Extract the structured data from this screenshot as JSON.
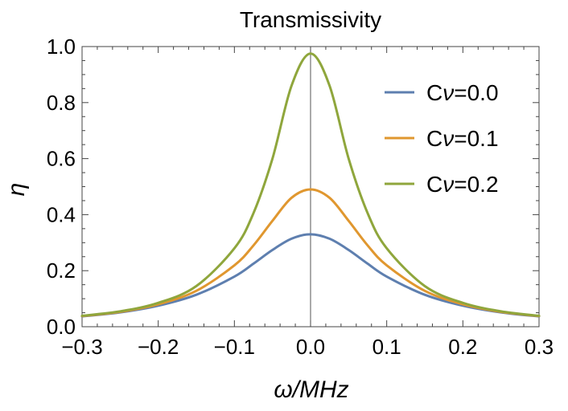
{
  "chart_data": {
    "type": "line",
    "title": "Transmissivity",
    "xlabel": "ω/MHz",
    "ylabel": "η",
    "xlim": [
      -0.3,
      0.3
    ],
    "ylim": [
      0.0,
      1.0
    ],
    "xticks": [
      -0.3,
      -0.2,
      -0.1,
      0.0,
      0.1,
      0.2,
      0.3
    ],
    "xtick_labels": [
      "−0.3",
      "−0.2",
      "−0.1",
      "0.0",
      "0.1",
      "0.2",
      "0.3"
    ],
    "yticks": [
      0.0,
      0.2,
      0.4,
      0.6,
      0.8,
      1.0
    ],
    "ytick_labels": [
      "0.0",
      "0.2",
      "0.4",
      "0.6",
      "0.8",
      "1.0"
    ],
    "grid": false,
    "legend_position": "top-right",
    "x": [
      -0.3,
      -0.25,
      -0.2,
      -0.15,
      -0.1,
      -0.075,
      -0.05,
      -0.025,
      0.0,
      0.025,
      0.05,
      0.075,
      0.1,
      0.15,
      0.2,
      0.25,
      0.3
    ],
    "series": [
      {
        "name": "Cν=0.0",
        "legend_prefix": "C",
        "legend_var": "ν",
        "legend_suffix": "=0.0",
        "color": "#5e7faf",
        "values": [
          0.037,
          0.051,
          0.075,
          0.114,
          0.179,
          0.225,
          0.274,
          0.314,
          0.33,
          0.314,
          0.274,
          0.225,
          0.179,
          0.114,
          0.075,
          0.051,
          0.037
        ]
      },
      {
        "name": "Cν=0.1",
        "legend_prefix": "C",
        "legend_var": "ν",
        "legend_suffix": "=0.1",
        "color": "#e0972f",
        "values": [
          0.038,
          0.053,
          0.08,
          0.128,
          0.219,
          0.29,
          0.378,
          0.46,
          0.49,
          0.46,
          0.378,
          0.29,
          0.219,
          0.128,
          0.08,
          0.053,
          0.038
        ]
      },
      {
        "name": "Cν=0.2",
        "legend_prefix": "C",
        "legend_var": "ν",
        "legend_suffix": "=0.2",
        "color": "#8fa63c",
        "values": [
          0.039,
          0.055,
          0.085,
          0.145,
          0.28,
          0.405,
          0.6,
          0.86,
          0.975,
          0.86,
          0.6,
          0.405,
          0.28,
          0.145,
          0.085,
          0.055,
          0.039
        ]
      }
    ]
  }
}
